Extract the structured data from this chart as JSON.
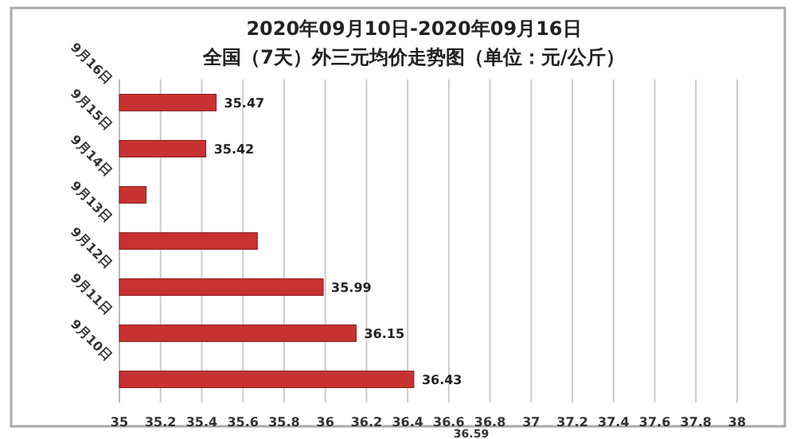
{
  "chart_data": {
    "type": "bar",
    "orientation": "horizontal",
    "title": "2020年09月10日-2020年09月16日",
    "subtitle": "全国（7天）外三元均价走势图（单位：元/公斤）",
    "categories": [
      "9月16日",
      "9月15日",
      "9月14日",
      "9月13日",
      "9月12日",
      "9月11日",
      "9月10日"
    ],
    "values": [
      35.47,
      35.42,
      35.13,
      35.67,
      35.99,
      36.15,
      36.43
    ],
    "value_labels": [
      "35.47",
      "35.42",
      null,
      null,
      "35.99",
      "36.15",
      "36.43"
    ],
    "color": "#c83232",
    "xlim": [
      35,
      38
    ],
    "xticks": [
      35,
      35.2,
      35.4,
      35.6,
      35.8,
      36,
      36.2,
      36.4,
      36.6,
      36.8,
      37,
      37.2,
      37.4,
      37.6,
      37.8,
      38
    ],
    "grid": "x",
    "annotations": [
      "36.59"
    ]
  }
}
